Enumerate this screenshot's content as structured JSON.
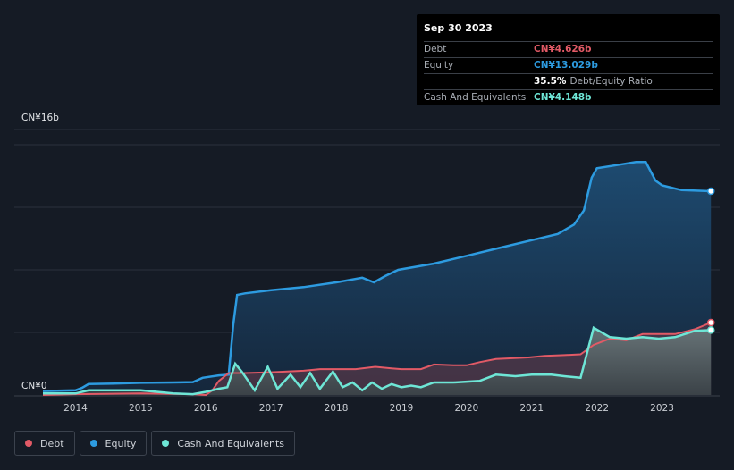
{
  "tooltip": {
    "date": "Sep 30 2023",
    "rows": [
      {
        "label": "Debt",
        "value": "CN¥4.626b",
        "color": "#e25a66"
      },
      {
        "label": "Equity",
        "value": "CN¥13.029b",
        "color": "#2d9be0"
      },
      {
        "ratio_value": "35.5%",
        "ratio_text": "Debt/Equity Ratio"
      },
      {
        "label": "Cash And Equivalents",
        "value": "CN¥4.148b",
        "color": "#6ee6d6"
      }
    ]
  },
  "legend": [
    {
      "label": "Debt",
      "color": "#e25a66"
    },
    {
      "label": "Equity",
      "color": "#2d9be0"
    },
    {
      "label": "Cash And Equivalents",
      "color": "#6ee6d6"
    }
  ],
  "chart_data": {
    "type": "area",
    "y_unit": "CN¥b",
    "ylim": [
      0,
      16
    ],
    "y_tick_labels": [
      {
        "value": 16,
        "label": "CN¥16b"
      },
      {
        "value": 0,
        "label": "CN¥0"
      }
    ],
    "x_tick_labels": [
      "2014",
      "2015",
      "2016",
      "2017",
      "2018",
      "2019",
      "2020",
      "2021",
      "2022",
      "2023"
    ],
    "xlim": [
      2013.45,
      2023.75
    ],
    "grid": true,
    "legend_position": "bottom-left",
    "series": [
      {
        "name": "Equity",
        "color": "#2d9be0",
        "x": [
          2013.5,
          2014.0,
          2014.1,
          2014.2,
          2014.5,
          2015.0,
          2015.5,
          2015.8,
          2015.95,
          2016.2,
          2016.35,
          2016.42,
          2016.48,
          2016.6,
          2017.0,
          2017.5,
          2018.0,
          2018.4,
          2018.58,
          2018.75,
          2018.95,
          2019.5,
          2020.0,
          2020.5,
          2021.0,
          2021.4,
          2021.65,
          2021.8,
          2021.92,
          2022.0,
          2022.3,
          2022.6,
          2022.75,
          2022.9,
          2023.0,
          2023.3,
          2023.75
        ],
        "values": [
          0.25,
          0.3,
          0.45,
          0.7,
          0.72,
          0.78,
          0.8,
          0.82,
          1.1,
          1.25,
          1.3,
          4.5,
          6.4,
          6.5,
          6.7,
          6.9,
          7.2,
          7.5,
          7.2,
          7.6,
          8.0,
          8.4,
          8.9,
          9.4,
          9.9,
          10.3,
          10.9,
          11.8,
          13.9,
          14.5,
          14.7,
          14.9,
          14.9,
          13.7,
          13.4,
          13.1,
          13.029
        ]
      },
      {
        "name": "Debt",
        "color": "#e25a66",
        "x": [
          2013.5,
          2014.0,
          2015.0,
          2015.8,
          2016.0,
          2016.1,
          2016.2,
          2016.35,
          2016.6,
          2017.0,
          2017.5,
          2017.75,
          2018.0,
          2018.3,
          2018.6,
          2018.85,
          2019.0,
          2019.3,
          2019.5,
          2019.8,
          2020.0,
          2020.2,
          2020.45,
          2020.7,
          2020.95,
          2021.2,
          2021.5,
          2021.75,
          2021.95,
          2022.2,
          2022.45,
          2022.7,
          2022.95,
          2023.2,
          2023.5,
          2023.75
        ],
        "values": [
          0.0,
          0.05,
          0.1,
          0.05,
          0.0,
          0.3,
          0.9,
          1.4,
          1.4,
          1.45,
          1.55,
          1.65,
          1.65,
          1.65,
          1.8,
          1.7,
          1.65,
          1.65,
          1.95,
          1.9,
          1.9,
          2.1,
          2.3,
          2.35,
          2.4,
          2.5,
          2.55,
          2.6,
          3.2,
          3.6,
          3.5,
          3.9,
          3.9,
          3.9,
          4.2,
          4.626
        ]
      },
      {
        "name": "Cash And Equivalents",
        "color": "#6ee6d6",
        "x": [
          2013.5,
          2014.0,
          2014.2,
          2014.5,
          2015.0,
          2015.5,
          2015.8,
          2016.0,
          2016.2,
          2016.33,
          2016.45,
          2016.55,
          2016.75,
          2016.95,
          2017.1,
          2017.3,
          2017.45,
          2017.6,
          2017.75,
          2017.95,
          2018.1,
          2018.25,
          2018.4,
          2018.55,
          2018.7,
          2018.85,
          2019.0,
          2019.15,
          2019.3,
          2019.5,
          2019.8,
          2020.2,
          2020.45,
          2020.75,
          2021.0,
          2021.3,
          2021.5,
          2021.75,
          2021.95,
          2022.2,
          2022.45,
          2022.7,
          2022.95,
          2023.2,
          2023.5,
          2023.75
        ],
        "values": [
          0.1,
          0.1,
          0.3,
          0.3,
          0.3,
          0.1,
          0.05,
          0.2,
          0.4,
          0.5,
          2.0,
          1.5,
          0.3,
          1.8,
          0.4,
          1.3,
          0.5,
          1.4,
          0.4,
          1.5,
          0.5,
          0.8,
          0.3,
          0.8,
          0.4,
          0.7,
          0.5,
          0.6,
          0.5,
          0.8,
          0.8,
          0.9,
          1.3,
          1.2,
          1.3,
          1.3,
          1.2,
          1.1,
          4.3,
          3.7,
          3.6,
          3.7,
          3.6,
          3.7,
          4.1,
          4.148
        ]
      }
    ]
  }
}
